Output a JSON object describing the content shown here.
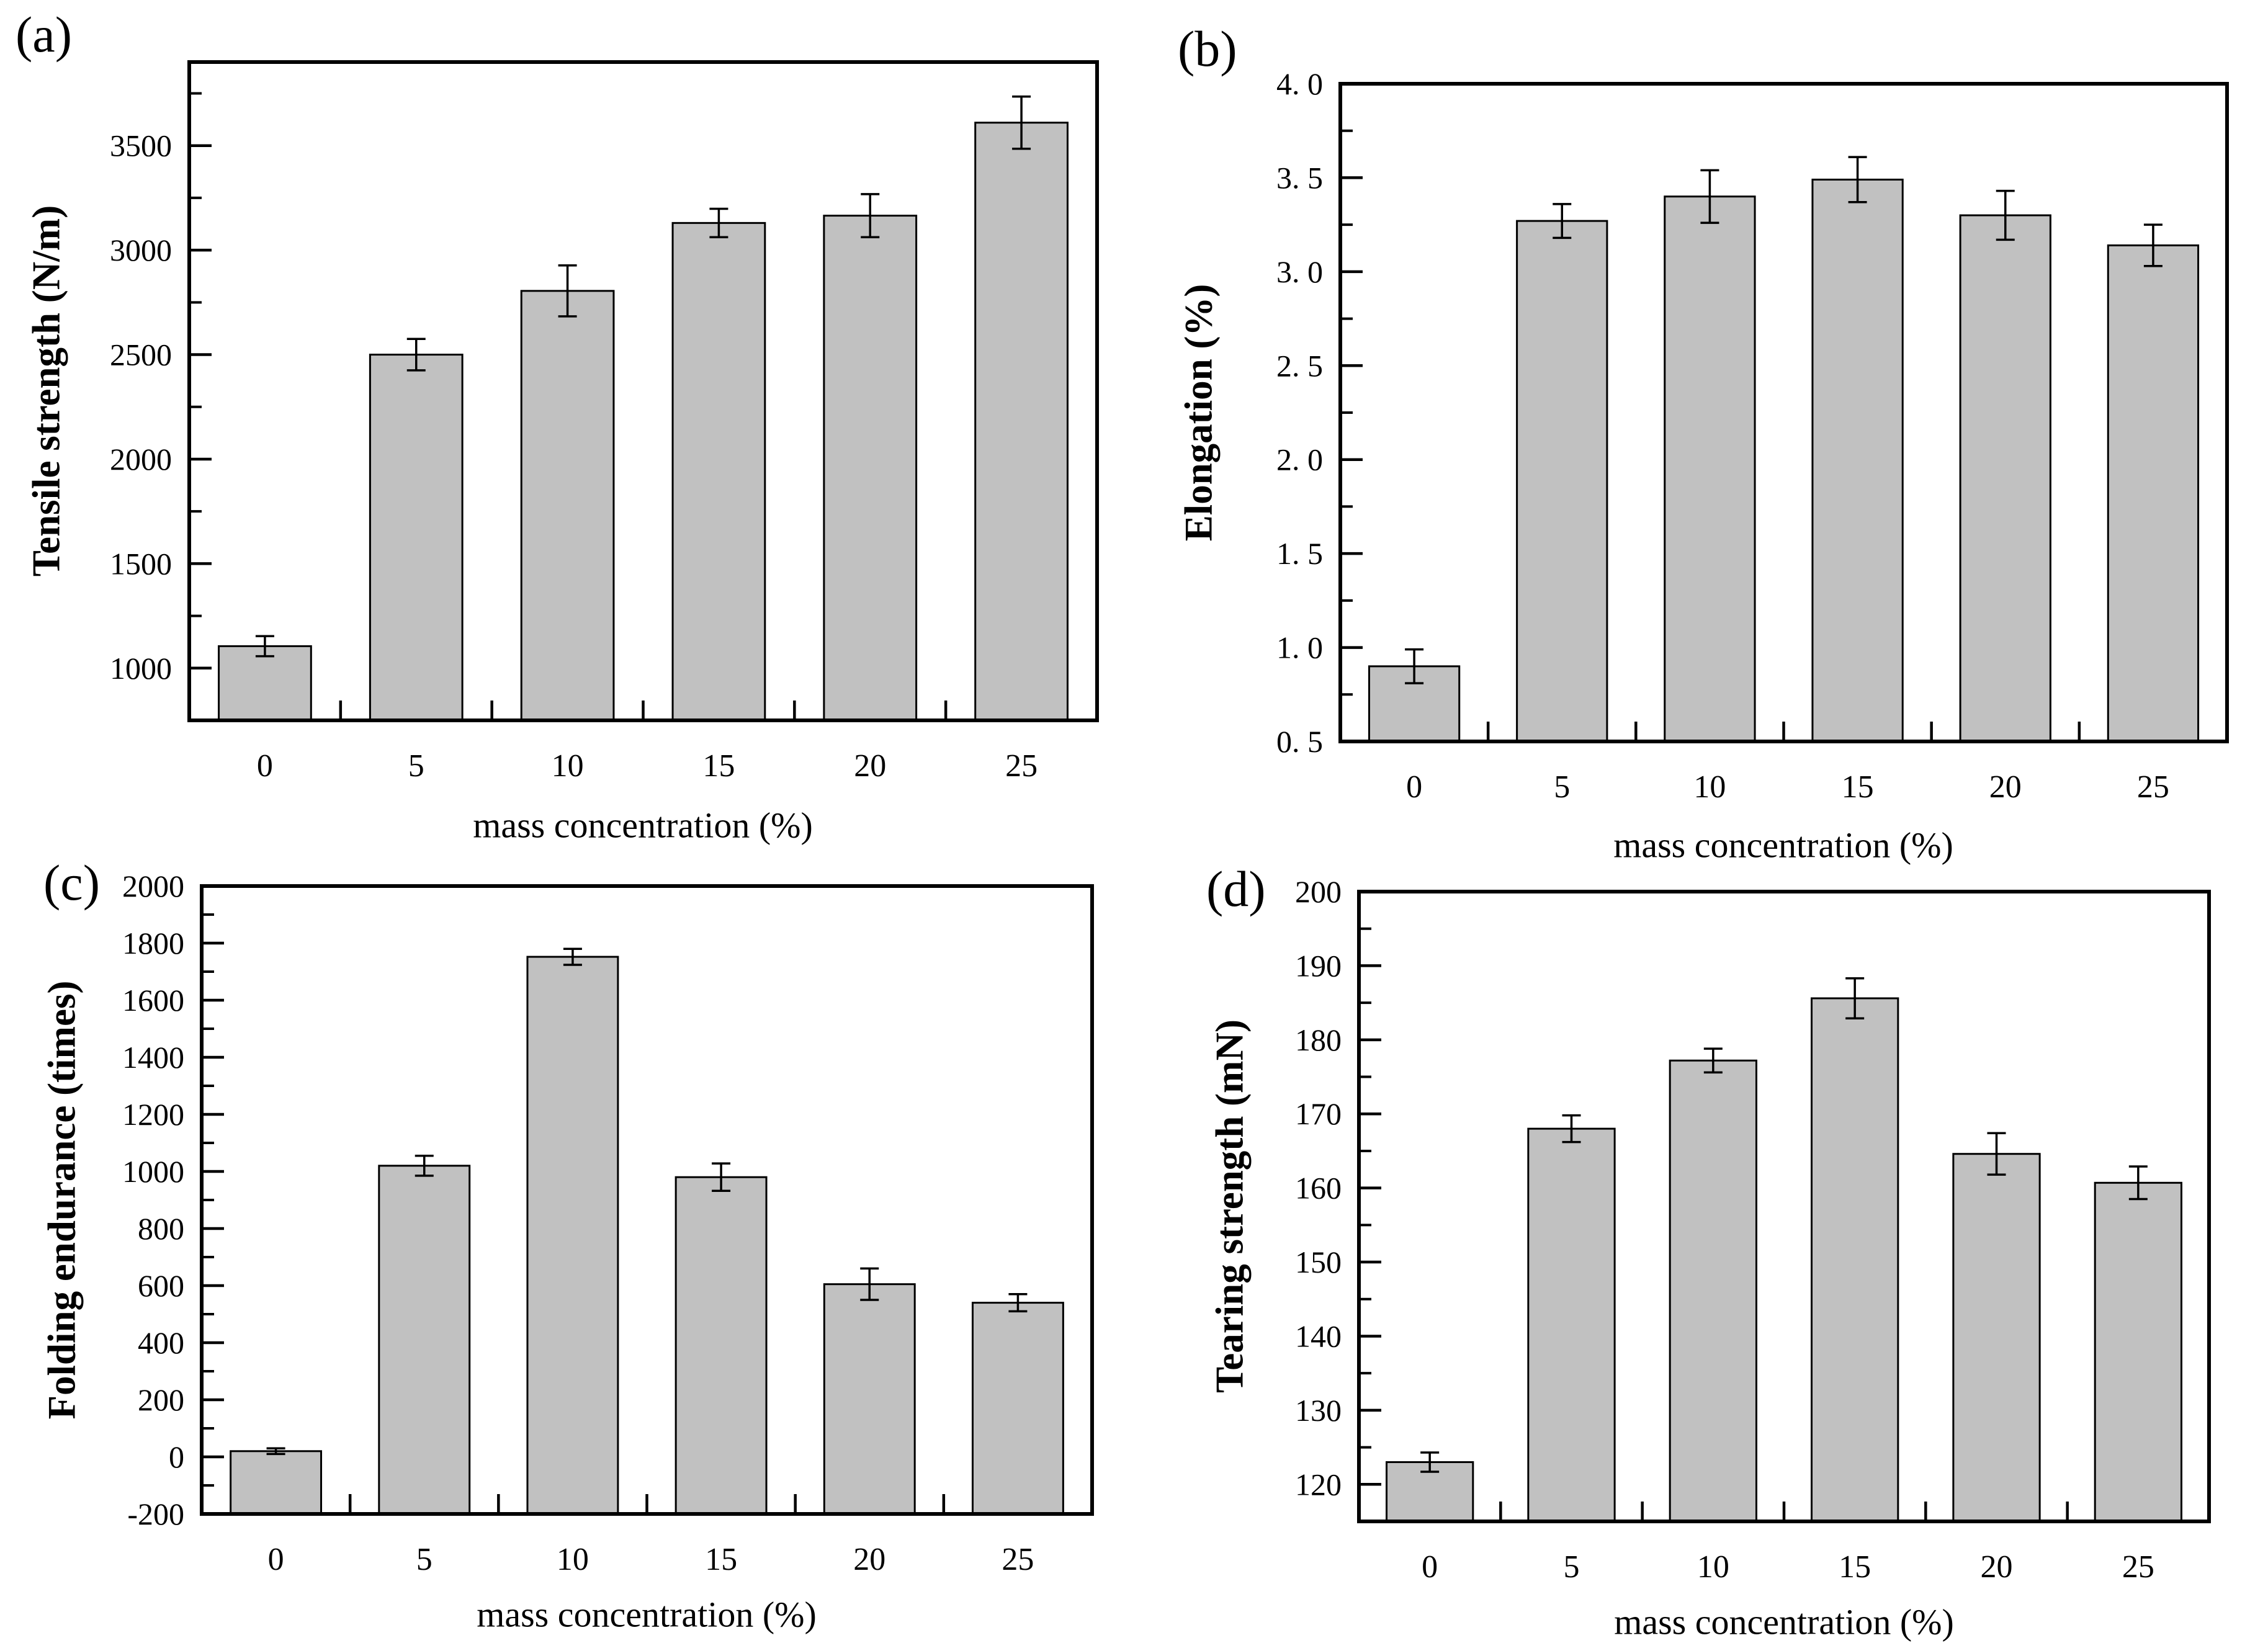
{
  "figure": {
    "background": "#ffffff",
    "bar_fill": "#c1c1c1",
    "bar_stroke": "#000000",
    "axis_color": "#000000"
  },
  "chart_data": [
    {
      "type": "bar",
      "panel_label": "(a)",
      "title": "",
      "xlabel": "mass concentration (%)",
      "ylabel": "Tensile strength (N/m)",
      "categories": [
        "0",
        "5",
        "10",
        "15",
        "20",
        "25"
      ],
      "values": [
        1105,
        2500,
        2805,
        3130,
        3165,
        3610
      ],
      "errors": [
        48,
        75,
        122,
        68,
        103,
        125
      ],
      "ylim": [
        750,
        3900
      ],
      "ytick_values": [
        1000,
        1500,
        2000,
        2500,
        3000,
        3500
      ],
      "ytick_labels": [
        "1000",
        "1500",
        "2000",
        "2500",
        "3000",
        "3500"
      ],
      "minor_step": 250,
      "grid": false,
      "legend": "none"
    },
    {
      "type": "bar",
      "panel_label": "(b)",
      "title": "",
      "xlabel": "mass concentration (%)",
      "ylabel": "Elongation (%)",
      "categories": [
        "0",
        "5",
        "10",
        "15",
        "20",
        "25"
      ],
      "values": [
        0.9,
        3.27,
        3.4,
        3.49,
        3.3,
        3.14
      ],
      "errors": [
        0.09,
        0.09,
        0.14,
        0.12,
        0.13,
        0.11
      ],
      "ylim": [
        0.5,
        4.0
      ],
      "ytick_values": [
        0.5,
        1.0,
        1.5,
        2.0,
        2.5,
        3.0,
        3.5,
        4.0
      ],
      "ytick_labels": [
        "0. 5",
        "1. 0",
        "1. 5",
        "2. 0",
        "2. 5",
        "3. 0",
        "3. 5",
        "4. 0"
      ],
      "minor_step": 0.25,
      "grid": false,
      "legend": "none"
    },
    {
      "type": "bar",
      "panel_label": "(c)",
      "title": "",
      "xlabel": "mass concentration (%)",
      "ylabel": "Folding endurance (times)",
      "categories": [
        "0",
        "5",
        "10",
        "15",
        "20",
        "25"
      ],
      "values": [
        20,
        1020,
        1752,
        980,
        605,
        540
      ],
      "errors": [
        10,
        35,
        28,
        48,
        55,
        30
      ],
      "ylim": [
        -200,
        2000
      ],
      "ytick_values": [
        -200,
        0,
        200,
        400,
        600,
        800,
        1000,
        1200,
        1400,
        1600,
        1800,
        2000
      ],
      "ytick_labels": [
        "-200",
        "0",
        "200",
        "400",
        "600",
        "800",
        "1000",
        "1200",
        "1400",
        "1600",
        "1800",
        "2000"
      ],
      "minor_step": 100,
      "grid": false,
      "legend": "none"
    },
    {
      "type": "bar",
      "panel_label": "(d)",
      "title": "",
      "xlabel": "mass concentration (%)",
      "ylabel": "Tearing strength (mN)",
      "categories": [
        "0",
        "5",
        "10",
        "15",
        "20",
        "25"
      ],
      "values": [
        123.0,
        168.0,
        177.2,
        185.6,
        164.6,
        160.7
      ],
      "errors": [
        1.3,
        1.8,
        1.6,
        2.7,
        2.8,
        2.2
      ],
      "ylim": [
        115,
        200
      ],
      "ytick_values": [
        120,
        130,
        140,
        150,
        160,
        170,
        180,
        190,
        200
      ],
      "ytick_labels": [
        "120",
        "130",
        "140",
        "150",
        "160",
        "170",
        "180",
        "190",
        "200"
      ],
      "minor_step": 5,
      "grid": false,
      "legend": "none"
    }
  ]
}
